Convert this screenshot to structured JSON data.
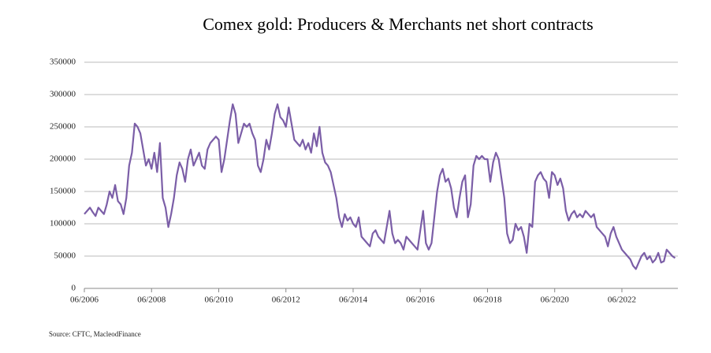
{
  "chart_data": {
    "type": "line",
    "title": "Comex gold: Producers & Merchants net short contracts",
    "source": "Source: CFTC, MacleodFinance",
    "x": [
      "06/2006",
      "07/2006",
      "08/2006",
      "09/2006",
      "10/2006",
      "11/2006",
      "12/2006",
      "01/2007",
      "02/2007",
      "03/2007",
      "04/2007",
      "05/2007",
      "06/2007",
      "07/2007",
      "08/2007",
      "09/2007",
      "10/2007",
      "11/2007",
      "12/2007",
      "01/2008",
      "02/2008",
      "03/2008",
      "04/2008",
      "05/2008",
      "06/2008",
      "07/2008",
      "08/2008",
      "09/2008",
      "10/2008",
      "11/2008",
      "12/2008",
      "01/2009",
      "02/2009",
      "03/2009",
      "04/2009",
      "05/2009",
      "06/2009",
      "07/2009",
      "08/2009",
      "09/2009",
      "10/2009",
      "11/2009",
      "12/2009",
      "01/2010",
      "02/2010",
      "03/2010",
      "04/2010",
      "05/2010",
      "06/2010",
      "07/2010",
      "08/2010",
      "09/2010",
      "10/2010",
      "11/2010",
      "12/2010",
      "01/2011",
      "02/2011",
      "03/2011",
      "04/2011",
      "05/2011",
      "06/2011",
      "07/2011",
      "08/2011",
      "09/2011",
      "10/2011",
      "11/2011",
      "12/2011",
      "01/2012",
      "02/2012",
      "03/2012",
      "04/2012",
      "05/2012",
      "06/2012",
      "07/2012",
      "08/2012",
      "09/2012",
      "10/2012",
      "11/2012",
      "12/2012",
      "01/2013",
      "02/2013",
      "03/2013",
      "04/2013",
      "05/2013",
      "06/2013",
      "07/2013",
      "08/2013",
      "09/2013",
      "10/2013",
      "11/2013",
      "12/2013",
      "01/2014",
      "02/2014",
      "03/2014",
      "04/2014",
      "05/2014",
      "06/2014",
      "07/2014",
      "08/2014",
      "09/2014",
      "10/2014",
      "11/2014",
      "12/2014",
      "01/2015",
      "02/2015",
      "03/2015",
      "04/2015",
      "05/2015",
      "06/2015",
      "07/2015",
      "08/2015",
      "09/2015",
      "10/2015",
      "11/2015",
      "12/2015",
      "01/2016",
      "02/2016",
      "03/2016",
      "04/2016",
      "05/2016",
      "06/2016",
      "07/2016",
      "08/2016",
      "09/2016",
      "10/2016",
      "11/2016",
      "12/2016",
      "01/2017",
      "02/2017",
      "03/2017",
      "04/2017",
      "05/2017",
      "06/2017",
      "07/2017",
      "08/2017",
      "09/2017",
      "10/2017",
      "11/2017",
      "12/2017",
      "01/2018",
      "02/2018",
      "03/2018",
      "04/2018",
      "05/2018",
      "06/2018",
      "07/2018",
      "08/2018",
      "09/2018",
      "10/2018",
      "11/2018",
      "12/2018",
      "01/2019",
      "02/2019",
      "03/2019",
      "04/2019",
      "05/2019",
      "06/2019",
      "07/2019",
      "08/2019",
      "09/2019",
      "10/2019",
      "11/2019",
      "12/2019",
      "01/2020",
      "02/2020",
      "03/2020",
      "04/2020",
      "05/2020",
      "06/2020",
      "07/2020",
      "08/2020",
      "09/2020",
      "10/2020",
      "11/2020",
      "12/2020",
      "01/2021",
      "02/2021",
      "03/2021",
      "04/2021",
      "05/2021",
      "06/2021",
      "07/2021",
      "08/2021",
      "09/2021",
      "10/2021",
      "11/2021",
      "12/2021",
      "01/2022",
      "02/2022",
      "03/2022",
      "04/2022",
      "05/2022",
      "06/2022",
      "07/2022",
      "08/2022",
      "09/2022",
      "10/2022",
      "11/2022",
      "12/2022",
      "01/2023",
      "02/2023",
      "03/2023",
      "04/2023",
      "05/2023",
      "06/2023",
      "07/2023",
      "08/2023",
      "09/2023",
      "10/2023",
      "11/2023",
      "12/2023",
      "01/2024"
    ],
    "series": [
      {
        "name": "Producers & Merchants net short",
        "color": "#7b5ea7",
        "values": [
          115000,
          120000,
          125000,
          118000,
          112000,
          125000,
          120000,
          115000,
          130000,
          150000,
          140000,
          160000,
          135000,
          130000,
          115000,
          140000,
          190000,
          210000,
          255000,
          250000,
          240000,
          215000,
          190000,
          200000,
          185000,
          210000,
          180000,
          225000,
          140000,
          125000,
          95000,
          115000,
          140000,
          175000,
          195000,
          185000,
          165000,
          200000,
          215000,
          190000,
          200000,
          210000,
          190000,
          185000,
          215000,
          225000,
          230000,
          235000,
          230000,
          180000,
          200000,
          230000,
          260000,
          285000,
          270000,
          225000,
          240000,
          255000,
          250000,
          255000,
          240000,
          230000,
          190000,
          180000,
          200000,
          230000,
          215000,
          240000,
          270000,
          285000,
          265000,
          260000,
          250000,
          280000,
          255000,
          230000,
          225000,
          220000,
          230000,
          215000,
          225000,
          210000,
          240000,
          220000,
          250000,
          210000,
          195000,
          190000,
          180000,
          160000,
          140000,
          110000,
          95000,
          115000,
          105000,
          110000,
          100000,
          95000,
          110000,
          80000,
          75000,
          70000,
          65000,
          85000,
          90000,
          80000,
          75000,
          70000,
          95000,
          120000,
          85000,
          70000,
          75000,
          70000,
          60000,
          80000,
          75000,
          70000,
          65000,
          60000,
          90000,
          120000,
          70000,
          60000,
          70000,
          110000,
          150000,
          175000,
          185000,
          165000,
          170000,
          155000,
          125000,
          110000,
          140000,
          165000,
          175000,
          110000,
          130000,
          190000,
          205000,
          200000,
          205000,
          200000,
          200000,
          165000,
          195000,
          210000,
          200000,
          170000,
          140000,
          85000,
          70000,
          75000,
          100000,
          90000,
          95000,
          80000,
          55000,
          100000,
          95000,
          165000,
          175000,
          180000,
          170000,
          165000,
          140000,
          180000,
          175000,
          160000,
          170000,
          155000,
          120000,
          105000,
          115000,
          120000,
          110000,
          115000,
          110000,
          120000,
          115000,
          110000,
          115000,
          95000,
          90000,
          85000,
          80000,
          65000,
          85000,
          95000,
          80000,
          70000,
          60000,
          55000,
          50000,
          45000,
          35000,
          30000,
          40000,
          50000,
          55000,
          45000,
          50000,
          40000,
          45000,
          55000,
          40000,
          42000,
          60000,
          55000,
          50000,
          47000
        ]
      }
    ],
    "xlim": [
      "06/2006",
      "02/2024"
    ],
    "xticks": [
      "06/2006",
      "06/2008",
      "06/2010",
      "06/2012",
      "06/2014",
      "06/2016",
      "06/2018",
      "06/2020",
      "06/2022"
    ],
    "ylim": [
      0,
      350000
    ],
    "yticks": [
      0,
      50000,
      100000,
      150000,
      200000,
      250000,
      300000,
      350000
    ],
    "grid": true
  }
}
